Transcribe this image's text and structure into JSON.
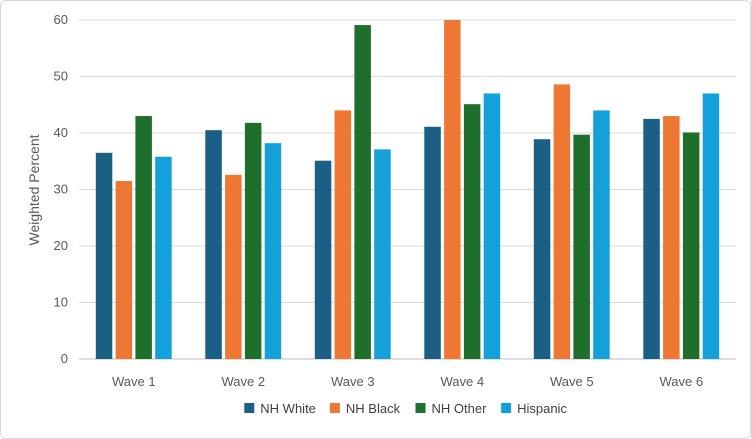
{
  "chart_data": {
    "type": "bar",
    "title": "",
    "xlabel": "",
    "ylabel": "Weighted Percent",
    "ylim": [
      0,
      60
    ],
    "yticks": [
      0,
      10,
      20,
      30,
      40,
      50,
      60
    ],
    "grid": true,
    "legend_position": "bottom",
    "categories": [
      "Wave 1",
      "Wave 2",
      "Wave 3",
      "Wave 4",
      "Wave 5",
      "Wave 6"
    ],
    "series": [
      {
        "name": "NH White",
        "color": "#1b5f85",
        "values": [
          36.5,
          40.5,
          35.1,
          41.1,
          38.9,
          42.5
        ]
      },
      {
        "name": "NH Black",
        "color": "#ee7733",
        "values": [
          31.5,
          32.6,
          44.0,
          60.0,
          48.6,
          43.0
        ]
      },
      {
        "name": "NH Other",
        "color": "#1e6e2c",
        "values": [
          43.0,
          41.8,
          59.1,
          45.1,
          39.7,
          40.1
        ]
      },
      {
        "name": "Hispanic",
        "color": "#14a0d8",
        "values": [
          35.8,
          38.2,
          37.1,
          47.0,
          44.0,
          47.0
        ]
      }
    ]
  }
}
